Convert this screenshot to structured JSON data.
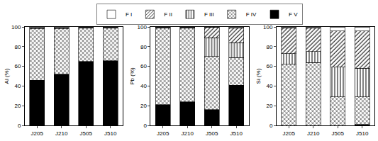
{
  "chart_data": [
    {
      "type": "bar",
      "stacked": true,
      "legend": "top",
      "grid": false,
      "y_label": "Al (%)",
      "categories": [
        "J205",
        "J210",
        "J505",
        "J510"
      ],
      "ylim": [
        0,
        100
      ],
      "yticks": [
        0,
        20,
        40,
        60,
        80,
        100
      ],
      "series": [
        {
          "name": "F I",
          "color": "#ffffff",
          "values": [
            1,
            1,
            0.5,
            0.5
          ]
        },
        {
          "name": "F II",
          "color": "#ffffff",
          "values": [
            1,
            1,
            0.5,
            0.5
          ]
        },
        {
          "name": "F III",
          "color": "#ffffff",
          "values": [
            0,
            0,
            0,
            0
          ]
        },
        {
          "name": "F IV",
          "color": "#ffffff",
          "values": [
            52,
            46,
            34,
            33.5
          ]
        },
        {
          "name": "F V",
          "color": "#000000",
          "values": [
            46,
            52,
            65,
            65.5
          ]
        }
      ]
    },
    {
      "type": "bar",
      "stacked": true,
      "legend": "top",
      "grid": false,
      "y_label": "Pb (%)",
      "categories": [
        "J205",
        "J210",
        "J505",
        "J510"
      ],
      "ylim": [
        0,
        100
      ],
      "yticks": [
        0,
        20,
        40,
        60,
        80,
        100
      ],
      "series": [
        {
          "name": "F I",
          "color": "#ffffff",
          "values": [
            0.5,
            0.5,
            0,
            1
          ]
        },
        {
          "name": "F II",
          "color": "#ffffff",
          "values": [
            0.5,
            0.5,
            11,
            15
          ]
        },
        {
          "name": "F III",
          "color": "#ffffff",
          "values": [
            0,
            0,
            19,
            15
          ]
        },
        {
          "name": "F IV",
          "color": "#ffffff",
          "values": [
            78,
            75,
            54,
            28
          ]
        },
        {
          "name": "F V",
          "color": "#000000",
          "values": [
            21,
            24,
            16,
            41
          ]
        }
      ]
    },
    {
      "type": "bar",
      "stacked": true,
      "legend": "top",
      "grid": false,
      "y_label": "Si (%)",
      "categories": [
        "J205",
        "J210",
        "J505",
        "J510"
      ],
      "ylim": [
        0,
        100
      ],
      "yticks": [
        0,
        20,
        40,
        60,
        80,
        100
      ],
      "series": [
        {
          "name": "F I",
          "color": "#ffffff",
          "values": [
            1,
            1,
            4,
            4
          ]
        },
        {
          "name": "F II",
          "color": "#ffffff",
          "values": [
            26,
            24,
            37,
            38
          ]
        },
        {
          "name": "F III",
          "color": "#ffffff",
          "values": [
            11,
            11,
            30,
            29
          ]
        },
        {
          "name": "F IV",
          "color": "#ffffff",
          "values": [
            62,
            64,
            29,
            28
          ]
        },
        {
          "name": "F V",
          "color": "#000000",
          "values": [
            0,
            0,
            0,
            1
          ]
        }
      ]
    }
  ]
}
